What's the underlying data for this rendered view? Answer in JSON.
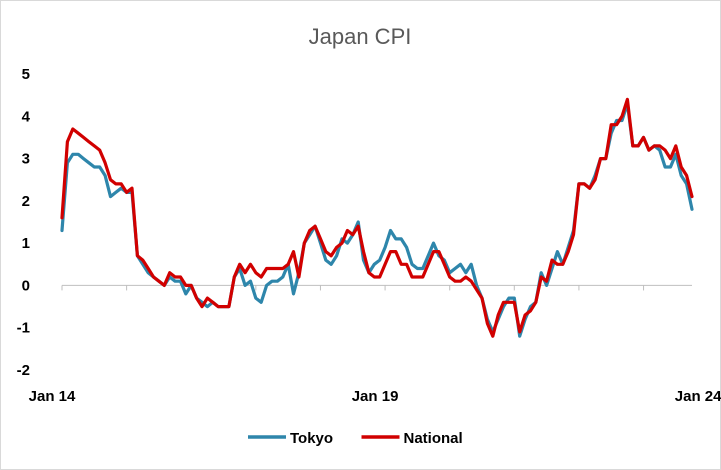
{
  "chart_data": {
    "type": "line",
    "title": "Japan CPI",
    "xlabel": "",
    "ylabel": "",
    "ylim": [
      -2,
      5
    ],
    "yticks": [
      -2,
      -1,
      0,
      1,
      2,
      3,
      4,
      5
    ],
    "xticks": [
      {
        "label": "Jan 14",
        "index": 0
      },
      {
        "label": "Jan 19",
        "index": 60
      },
      {
        "label": "Jan 24",
        "index": 120
      }
    ],
    "x_start": "Jan 14",
    "x_end": "Jan 24",
    "grid": false,
    "legend": "bottom",
    "series": [
      {
        "name": "Tokyo",
        "color": "#2E86AB",
        "values": [
          1.3,
          2.9,
          3.1,
          3.1,
          3.0,
          2.9,
          2.8,
          2.8,
          2.6,
          2.1,
          2.2,
          2.3,
          2.2,
          2.2,
          0.7,
          0.5,
          0.3,
          0.2,
          0.1,
          0.0,
          0.2,
          0.1,
          0.1,
          -0.2,
          0.0,
          -0.3,
          -0.4,
          -0.5,
          -0.4,
          -0.5,
          -0.5,
          -0.5,
          0.2,
          0.4,
          0.0,
          0.1,
          -0.3,
          -0.4,
          0.0,
          0.1,
          0.1,
          0.2,
          0.5,
          -0.2,
          0.3,
          1.0,
          1.2,
          1.4,
          1.0,
          0.6,
          0.5,
          0.7,
          1.1,
          1.0,
          1.2,
          1.5,
          0.6,
          0.3,
          0.5,
          0.6,
          0.9,
          1.3,
          1.1,
          1.1,
          0.9,
          0.5,
          0.4,
          0.4,
          0.7,
          1.0,
          0.7,
          0.6,
          0.3,
          0.4,
          0.5,
          0.3,
          0.5,
          0.0,
          -0.3,
          -0.8,
          -1.1,
          -0.8,
          -0.5,
          -0.3,
          -0.3,
          -1.2,
          -0.8,
          -0.5,
          -0.4,
          0.3,
          0.0,
          0.4,
          0.8,
          0.5,
          0.9,
          1.3,
          2.4,
          2.4,
          2.3,
          2.6,
          3.0,
          3.0,
          3.6,
          3.9,
          3.9,
          4.3,
          3.3,
          3.3,
          3.5,
          3.2,
          3.3,
          3.2,
          2.8,
          2.8,
          3.1,
          2.6,
          2.4,
          1.8
        ]
      },
      {
        "name": "National",
        "color": "#D10000",
        "values": [
          1.6,
          3.4,
          3.7,
          3.6,
          3.5,
          3.4,
          3.3,
          3.2,
          2.9,
          2.5,
          2.4,
          2.4,
          2.2,
          2.3,
          0.7,
          0.6,
          0.4,
          0.2,
          0.1,
          0.0,
          0.3,
          0.2,
          0.2,
          0.0,
          0.0,
          -0.3,
          -0.5,
          -0.3,
          -0.4,
          -0.5,
          -0.5,
          -0.5,
          0.2,
          0.5,
          0.3,
          0.5,
          0.3,
          0.2,
          0.4,
          0.4,
          0.4,
          0.4,
          0.5,
          0.8,
          0.2,
          1.0,
          1.3,
          1.4,
          1.1,
          0.8,
          0.7,
          0.9,
          1.0,
          1.3,
          1.2,
          1.4,
          0.8,
          0.3,
          0.2,
          0.2,
          0.5,
          0.8,
          0.8,
          0.5,
          0.5,
          0.2,
          0.2,
          0.2,
          0.5,
          0.8,
          0.8,
          0.5,
          0.2,
          0.1,
          0.1,
          0.2,
          0.1,
          -0.1,
          -0.3,
          -0.9,
          -1.2,
          -0.7,
          -0.4,
          -0.4,
          -0.4,
          -1.1,
          -0.7,
          -0.6,
          -0.4,
          0.2,
          0.1,
          0.6,
          0.5,
          0.5,
          0.8,
          1.2,
          2.4,
          2.4,
          2.3,
          2.5,
          3.0,
          3.0,
          3.8,
          3.8,
          4.0,
          4.4,
          3.3,
          3.3,
          3.5,
          3.2,
          3.3,
          3.3,
          3.2,
          3.0,
          3.3,
          2.8,
          2.6,
          2.1
        ]
      }
    ]
  }
}
